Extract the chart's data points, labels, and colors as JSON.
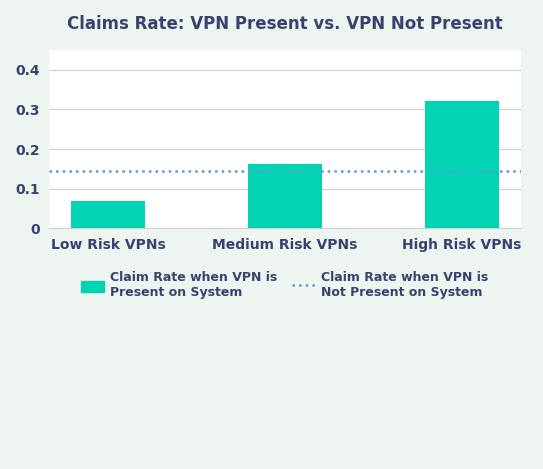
{
  "title": "Claims Rate: VPN Present vs. VPN Not Present",
  "categories": [
    "Low Risk VPNs",
    "Medium Risk VPNs",
    "High Risk VPNs"
  ],
  "bar_values": [
    0.068,
    0.163,
    0.322
  ],
  "bar_color": "#00D4B4",
  "hline_value": 0.145,
  "hline_color": "#5B9BD5",
  "hline_style": "dotted",
  "ylim": [
    0,
    0.45
  ],
  "yticks": [
    0,
    0.1,
    0.2,
    0.3,
    0.4
  ],
  "ytick_labels": [
    "0",
    "0.1",
    "0.2",
    "0.3",
    "0.4"
  ],
  "title_color": "#3D3F6E",
  "tick_color": "#3D3F6E",
  "grid_color": "#d0d0d0",
  "figure_background_color": "#eef5f0",
  "axes_background_color": "#ffffff",
  "legend_bar_label": "Claim Rate when VPN is\nPresent on System",
  "legend_line_label": "Claim Rate when VPN is\nNot Present on System",
  "bar_width": 0.42,
  "title_fontsize": 12,
  "tick_fontsize": 10,
  "legend_fontsize": 9
}
